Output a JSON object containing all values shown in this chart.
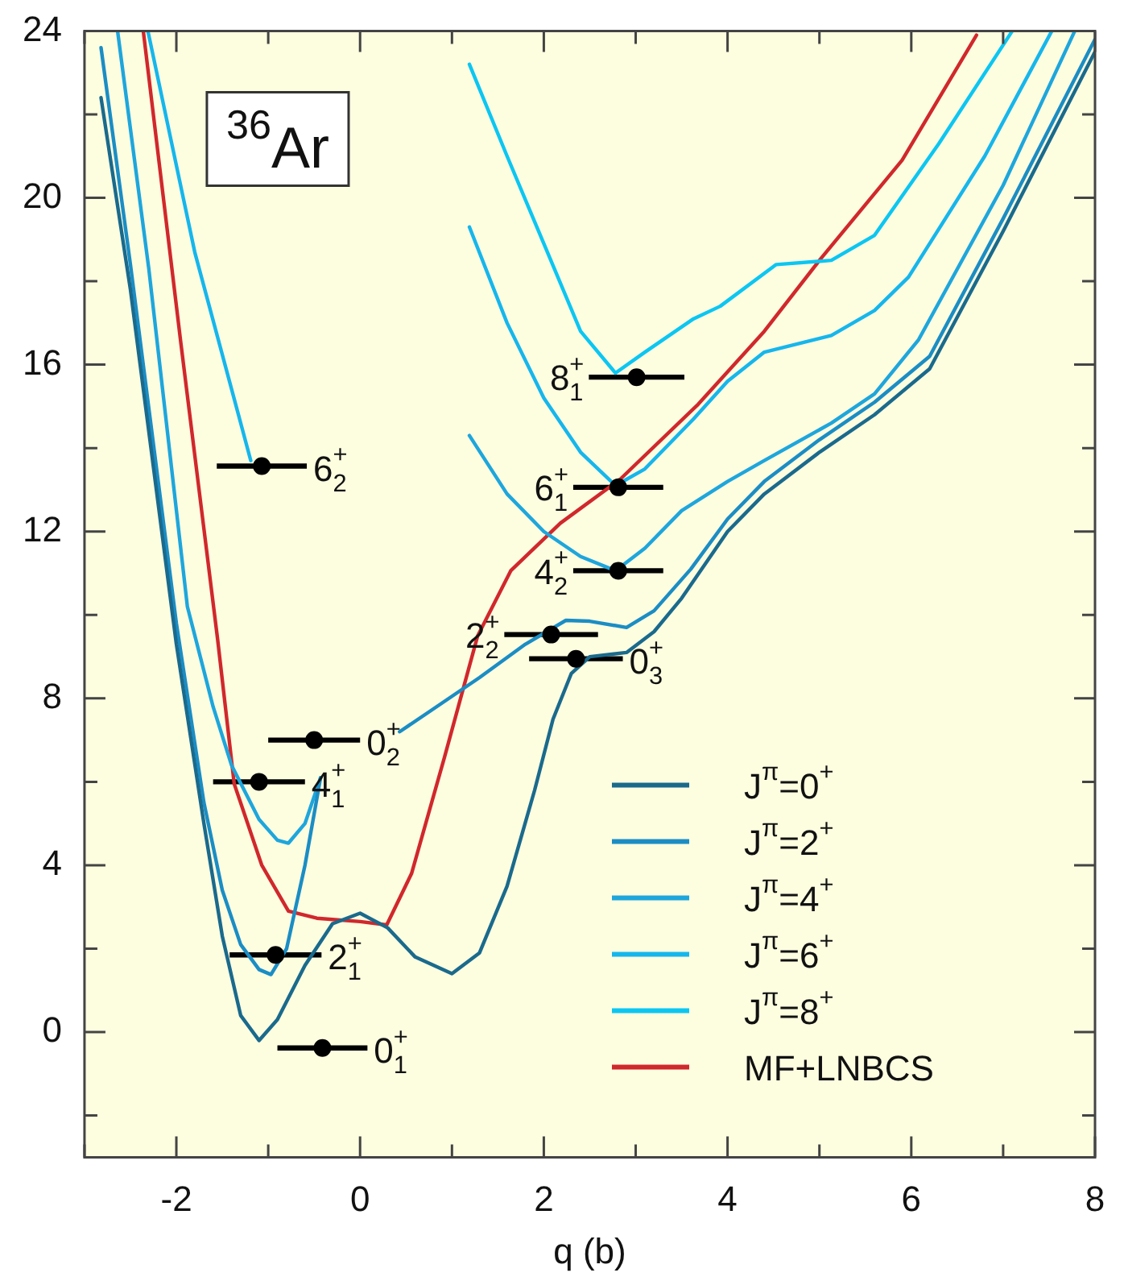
{
  "chart_data": {
    "type": "line",
    "title": "$^{36}$Ar",
    "xlabel": "q (b)",
    "xlim": [
      -3,
      8
    ],
    "ylim": [
      -3,
      24
    ],
    "xticks": [
      {
        "value": -3,
        "label": null
      },
      -2,
      {
        "value": -1,
        "label": null
      },
      0,
      {
        "value": 1,
        "label": null
      },
      2,
      {
        "value": 3,
        "label": null
      },
      4,
      {
        "value": 5,
        "label": null
      },
      6,
      {
        "value": 7,
        "label": null
      },
      8
    ],
    "yticks": [
      {
        "value": -2,
        "label": null
      },
      0,
      {
        "value": 2,
        "label": null
      },
      4,
      {
        "value": 6,
        "label": null
      },
      8,
      {
        "value": 10,
        "label": null
      },
      12,
      {
        "value": 14,
        "label": null
      },
      16,
      {
        "value": 18,
        "label": null
      },
      20,
      {
        "value": 22,
        "label": null
      },
      24
    ],
    "legend": "bottom right",
    "line_style": "solid",
    "series": [
      {
        "name": "J$^{π}$=0$^{+}$",
        "color": "#1a6a8c",
        "marker": "none",
        "x": [
          -2.82,
          -2.5,
          -2,
          -1.7,
          -1.5,
          -1.3,
          -1.1,
          -0.9,
          -0.6,
          -0.3,
          0,
          0.3,
          0.6,
          1.0,
          1.3,
          1.6,
          1.9,
          2.1,
          2.3,
          2.5,
          2.9,
          3.2,
          3.5,
          4.0,
          4.4,
          5.0,
          5.6,
          6.2,
          7.0,
          8.0
        ],
        "values": [
          22.4,
          17.8,
          9.3,
          5.0,
          2.3,
          0.4,
          -0.2,
          0.3,
          1.6,
          2.6,
          2.85,
          2.5,
          1.8,
          1.4,
          1.9,
          3.5,
          5.8,
          7.5,
          8.6,
          9.0,
          9.1,
          9.6,
          10.4,
          12.0,
          12.9,
          13.9,
          14.8,
          15.9,
          19.2,
          23.5
        ]
      },
      {
        "name": "J$^{π}$=2$^{+}$",
        "color": "#1b8dc4",
        "marker": "none",
        "x": [
          -2.82,
          -2.5,
          -2,
          -1.7,
          -1.5,
          -1.3,
          -1.1,
          -0.97,
          -0.8,
          -0.6,
          -0.43,
          0,
          0.43,
          0.8,
          1.3,
          1.8,
          2.24,
          2.5,
          2.9,
          3.2,
          3.6,
          4.0,
          4.4,
          5.0,
          5.6,
          6.2,
          7.0,
          8.0
        ],
        "values": [
          23.6,
          18.4,
          9.8,
          5.5,
          3.4,
          2.1,
          1.5,
          1.38,
          2.0,
          4.0,
          6.1,
          null,
          7.2,
          7.75,
          8.5,
          9.3,
          9.87,
          9.85,
          9.7,
          10.1,
          11.1,
          12.3,
          13.2,
          14.2,
          15.1,
          16.2,
          19.5,
          23.8
        ]
      },
      {
        "name": "J$^{π}$=4$^{+}$",
        "color": "#1ea6dc",
        "marker": "none",
        "x": [
          -2.64,
          -2.3,
          -1.88,
          -1.6,
          -1.4,
          -1.1,
          -0.9,
          -0.78,
          -0.6,
          -0.43,
          0.5,
          1.19,
          1.6,
          2.0,
          2.4,
          2.78,
          3.1,
          3.5,
          4.0,
          4.4,
          5.13,
          5.6,
          6.08,
          7.0,
          7.78
        ],
        "values": [
          24,
          18.3,
          10.2,
          7.8,
          6.4,
          5.1,
          4.6,
          4.53,
          5.0,
          6.1,
          null,
          14.3,
          12.9,
          12.0,
          11.4,
          11.06,
          11.6,
          12.5,
          13.2,
          13.7,
          14.6,
          15.3,
          16.6,
          20.3,
          24
        ]
      },
      {
        "name": "J$^{π}$=6$^{+}$",
        "color": "#16b6ec",
        "marker": "none",
        "x": [
          -2.31,
          -1.8,
          -1.19,
          -0.5,
          1.19,
          1.6,
          2.0,
          2.4,
          2.78,
          3.1,
          3.63,
          4.0,
          4.4,
          5.13,
          5.6,
          5.97,
          6.8,
          7.53
        ],
        "values": [
          24,
          18.7,
          13.7,
          null,
          19.3,
          17.0,
          15.2,
          13.9,
          13.1,
          13.5,
          14.7,
          15.6,
          16.3,
          16.7,
          17.3,
          18.1,
          21.0,
          24
        ]
      },
      {
        "name": "J$^{π}$=8$^{+}$",
        "color": "#0cc6f2",
        "marker": "none",
        "x": [
          1.19,
          1.6,
          2.0,
          2.4,
          2.78,
          3.1,
          3.63,
          3.92,
          4.53,
          5.13,
          5.6,
          6.3,
          7.1
        ],
        "values": [
          23.2,
          21.0,
          18.9,
          16.8,
          15.8,
          16.3,
          17.1,
          17.4,
          18.4,
          18.5,
          19.1,
          21.3,
          24
        ]
      },
      {
        "name": "MF+LNBCS",
        "color": "#d0282c",
        "marker": "none",
        "x": [
          -2.36,
          -1.95,
          -1.55,
          -1.37,
          -1.07,
          -0.78,
          -0.47,
          0,
          0.29,
          0.56,
          0.92,
          1.28,
          1.64,
          2.18,
          2.83,
          3.68,
          4.4,
          5.0,
          5.9,
          6.71
        ],
        "values": [
          24,
          16.5,
          9.4,
          5.95,
          4.0,
          2.9,
          2.73,
          2.65,
          2.57,
          3.8,
          6.6,
          9.5,
          11.06,
          12.2,
          13.25,
          15.05,
          16.8,
          18.5,
          20.9,
          23.9
        ]
      },
      {
        "type": "scatter",
        "color": "#000000",
        "marker": "circle",
        "x": [
          -0.41,
          -0.92,
          -1.1,
          -0.5,
          -1.07,
          2.08,
          2.35,
          2.81,
          2.81,
          3.01
        ],
        "values": [
          -0.38,
          1.85,
          6.0,
          7.0,
          13.57,
          9.53,
          8.95,
          11.06,
          13.06,
          15.7
        ],
        "xerrors": [
          0.49,
          0.5,
          0.5,
          0.5,
          0.49,
          0.51,
          0.51,
          0.49,
          0.49,
          0.52
        ],
        "value_labels": [
          "0$^{+}$$_{1}$",
          "2$^{+}$$_{1}$",
          "4$^{+}$$_{1}$",
          "0$^{+}$$_{2}$",
          "6$^{+}$$_{2}$",
          "2$^{+}$$_{2}$",
          "0$^{+}$$_{3}$",
          "4$^{+}$$_{2}$",
          "6$^{+}$$_{1}$",
          "8$^{+}$$_{1}$"
        ]
      }
    ]
  }
}
